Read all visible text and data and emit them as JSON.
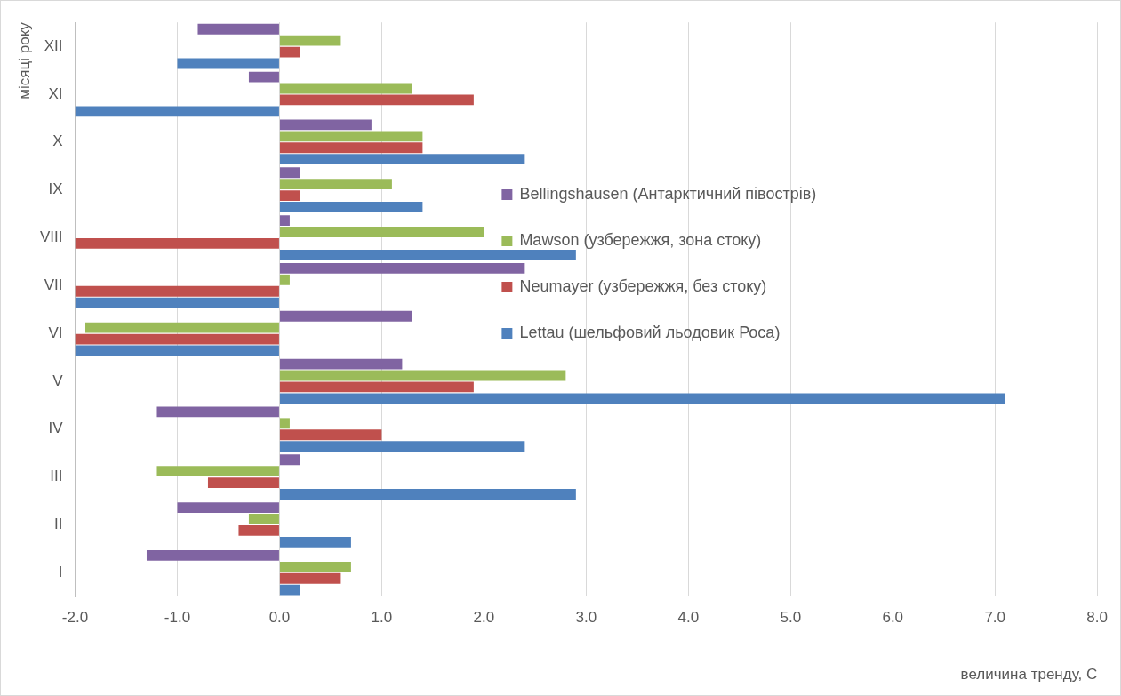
{
  "chart_data": {
    "type": "bar",
    "orientation": "horizontal",
    "xlabel": "величина тренду, С",
    "ylabel": "місяці року",
    "categories": [
      "XII",
      "XI",
      "X",
      "IX",
      "VIII",
      "VII",
      "VI",
      "V",
      "IV",
      "III",
      "II",
      "I"
    ],
    "series": [
      {
        "name": "Bellingshausen (Антарктичний півострів)",
        "color": "#8064a2",
        "values": [
          -0.8,
          -0.3,
          0.9,
          0.2,
          0.1,
          2.4,
          1.3,
          1.2,
          -1.2,
          0.2,
          -1.0,
          -1.3
        ]
      },
      {
        "name": "Mawson (узбережжя, зона стоку)",
        "color": "#9bbb59",
        "values": [
          0.6,
          1.3,
          1.4,
          1.1,
          2.0,
          0.1,
          -1.9,
          2.8,
          0.1,
          -1.2,
          -0.3,
          0.7
        ]
      },
      {
        "name": "Neumayer (узбережжя, без стоку)",
        "color": "#c0504d",
        "values": [
          0.2,
          1.9,
          1.4,
          0.2,
          -2.0,
          -2.0,
          -2.0,
          1.9,
          1.0,
          -0.7,
          -0.4,
          0.6
        ]
      },
      {
        "name": "Lettau (шельфовий льодовик Роса)",
        "color": "#4f81bd",
        "values": [
          -1.0,
          -2.0,
          2.4,
          1.4,
          2.9,
          -2.0,
          -2.0,
          7.1,
          2.4,
          2.9,
          0.7,
          0.2
        ]
      }
    ],
    "xlim": [
      -2,
      8
    ],
    "xticks": [
      {
        "value": -2,
        "label": "-2.0"
      },
      {
        "value": -1,
        "label": "-1.0"
      },
      {
        "value": 0,
        "label": "0.0"
      },
      {
        "value": 1,
        "label": "1.0"
      },
      {
        "value": 2,
        "label": "2.0"
      },
      {
        "value": 3,
        "label": "3.0"
      },
      {
        "value": 4,
        "label": "4.0"
      },
      {
        "value": 5,
        "label": "5.0"
      },
      {
        "value": 6,
        "label": "6.0"
      },
      {
        "value": 7,
        "label": "7.0"
      },
      {
        "value": 8,
        "label": "8.0"
      }
    ],
    "grid": "x",
    "legend": "right"
  }
}
